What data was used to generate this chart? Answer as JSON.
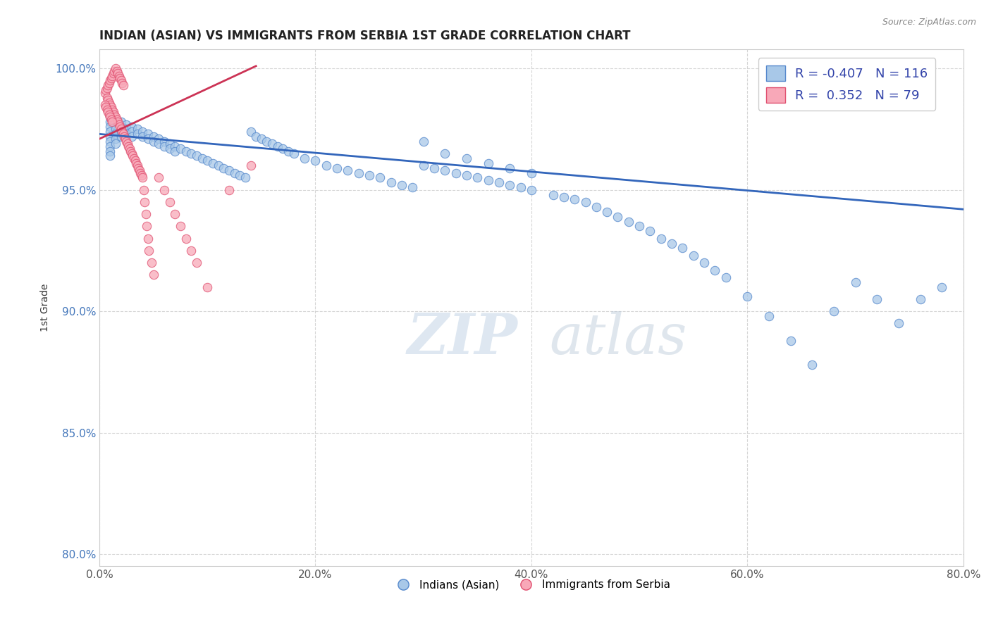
{
  "title": "INDIAN (ASIAN) VS IMMIGRANTS FROM SERBIA 1ST GRADE CORRELATION CHART",
  "source_text": "Source: ZipAtlas.com",
  "ylabel": "1st Grade",
  "xlim": [
    0.0,
    0.8
  ],
  "ylim": [
    0.795,
    1.008
  ],
  "xtick_labels": [
    "0.0%",
    "",
    "",
    "",
    "",
    "20.0%",
    "",
    "",
    "",
    "",
    "40.0%",
    "",
    "",
    "",
    "",
    "60.0%",
    "",
    "",
    "",
    "",
    "80.0%"
  ],
  "xtick_vals": [
    0.0,
    0.04,
    0.08,
    0.12,
    0.16,
    0.2,
    0.24,
    0.28,
    0.32,
    0.36,
    0.4,
    0.44,
    0.48,
    0.52,
    0.56,
    0.6,
    0.64,
    0.68,
    0.72,
    0.76,
    0.8
  ],
  "ytick_labels": [
    "80.0%",
    "85.0%",
    "90.0%",
    "95.0%",
    "100.0%"
  ],
  "ytick_vals": [
    0.8,
    0.85,
    0.9,
    0.95,
    1.0
  ],
  "blue_R": -0.407,
  "blue_N": 116,
  "pink_R": 0.352,
  "pink_N": 79,
  "blue_color": "#a8c8e8",
  "blue_edge": "#5588cc",
  "pink_color": "#f8a8b8",
  "pink_edge": "#e05070",
  "blue_line_color": "#3366bb",
  "pink_line_color": "#cc3355",
  "legend_blue_face": "#a8c8e8",
  "legend_pink_face": "#f8a8b8",
  "blue_trend_x": [
    0.0,
    0.8
  ],
  "blue_trend_y": [
    0.973,
    0.942
  ],
  "pink_trend_x": [
    0.0,
    0.145
  ],
  "pink_trend_y": [
    0.971,
    1.001
  ],
  "blue_scatter_x": [
    0.01,
    0.01,
    0.01,
    0.01,
    0.01,
    0.01,
    0.01,
    0.01,
    0.01,
    0.015,
    0.015,
    0.015,
    0.015,
    0.02,
    0.02,
    0.02,
    0.02,
    0.025,
    0.025,
    0.025,
    0.03,
    0.03,
    0.03,
    0.035,
    0.035,
    0.04,
    0.04,
    0.045,
    0.045,
    0.05,
    0.05,
    0.055,
    0.055,
    0.06,
    0.06,
    0.065,
    0.065,
    0.07,
    0.07,
    0.075,
    0.08,
    0.085,
    0.09,
    0.095,
    0.1,
    0.105,
    0.11,
    0.115,
    0.12,
    0.125,
    0.13,
    0.135,
    0.14,
    0.145,
    0.15,
    0.155,
    0.16,
    0.165,
    0.17,
    0.175,
    0.18,
    0.19,
    0.2,
    0.21,
    0.22,
    0.23,
    0.24,
    0.25,
    0.26,
    0.27,
    0.28,
    0.29,
    0.3,
    0.31,
    0.32,
    0.33,
    0.34,
    0.35,
    0.36,
    0.37,
    0.38,
    0.39,
    0.4,
    0.42,
    0.43,
    0.44,
    0.45,
    0.46,
    0.47,
    0.48,
    0.49,
    0.5,
    0.51,
    0.52,
    0.53,
    0.54,
    0.55,
    0.56,
    0.57,
    0.58,
    0.6,
    0.62,
    0.64,
    0.66,
    0.68,
    0.7,
    0.72,
    0.74,
    0.76,
    0.78,
    0.3,
    0.32,
    0.34,
    0.36,
    0.38,
    0.4
  ],
  "blue_scatter_y": [
    0.98,
    0.978,
    0.976,
    0.974,
    0.972,
    0.97,
    0.968,
    0.966,
    0.964,
    0.975,
    0.973,
    0.971,
    0.969,
    0.978,
    0.976,
    0.974,
    0.972,
    0.977,
    0.975,
    0.973,
    0.976,
    0.974,
    0.972,
    0.975,
    0.973,
    0.974,
    0.972,
    0.973,
    0.971,
    0.972,
    0.97,
    0.971,
    0.969,
    0.97,
    0.968,
    0.969,
    0.967,
    0.968,
    0.966,
    0.967,
    0.966,
    0.965,
    0.964,
    0.963,
    0.962,
    0.961,
    0.96,
    0.959,
    0.958,
    0.957,
    0.956,
    0.955,
    0.974,
    0.972,
    0.971,
    0.97,
    0.969,
    0.968,
    0.967,
    0.966,
    0.965,
    0.963,
    0.962,
    0.96,
    0.959,
    0.958,
    0.957,
    0.956,
    0.955,
    0.953,
    0.952,
    0.951,
    0.96,
    0.959,
    0.958,
    0.957,
    0.956,
    0.955,
    0.954,
    0.953,
    0.952,
    0.951,
    0.95,
    0.948,
    0.947,
    0.946,
    0.945,
    0.943,
    0.941,
    0.939,
    0.937,
    0.935,
    0.933,
    0.93,
    0.928,
    0.926,
    0.923,
    0.92,
    0.917,
    0.914,
    0.906,
    0.898,
    0.888,
    0.878,
    0.9,
    0.912,
    0.905,
    0.895,
    0.905,
    0.91,
    0.97,
    0.965,
    0.963,
    0.961,
    0.959,
    0.957
  ],
  "pink_scatter_x": [
    0.005,
    0.006,
    0.007,
    0.008,
    0.009,
    0.01,
    0.011,
    0.012,
    0.013,
    0.014,
    0.015,
    0.016,
    0.017,
    0.018,
    0.019,
    0.02,
    0.021,
    0.022,
    0.007,
    0.008,
    0.009,
    0.01,
    0.011,
    0.012,
    0.013,
    0.014,
    0.015,
    0.016,
    0.017,
    0.018,
    0.019,
    0.02,
    0.021,
    0.022,
    0.023,
    0.024,
    0.025,
    0.026,
    0.027,
    0.028,
    0.029,
    0.03,
    0.031,
    0.032,
    0.033,
    0.034,
    0.035,
    0.036,
    0.037,
    0.038,
    0.039,
    0.04,
    0.041,
    0.042,
    0.043,
    0.044,
    0.045,
    0.046,
    0.048,
    0.05,
    0.055,
    0.06,
    0.065,
    0.07,
    0.075,
    0.08,
    0.085,
    0.09,
    0.1,
    0.12,
    0.14,
    0.005,
    0.006,
    0.007,
    0.008,
    0.009,
    0.01,
    0.011,
    0.012
  ],
  "pink_scatter_y": [
    0.99,
    0.991,
    0.992,
    0.993,
    0.994,
    0.995,
    0.996,
    0.997,
    0.998,
    0.999,
    1.0,
    0.999,
    0.998,
    0.997,
    0.996,
    0.995,
    0.994,
    0.993,
    0.988,
    0.987,
    0.986,
    0.985,
    0.984,
    0.983,
    0.982,
    0.981,
    0.98,
    0.979,
    0.978,
    0.977,
    0.976,
    0.975,
    0.974,
    0.973,
    0.972,
    0.971,
    0.97,
    0.969,
    0.968,
    0.967,
    0.966,
    0.965,
    0.964,
    0.963,
    0.962,
    0.961,
    0.96,
    0.959,
    0.958,
    0.957,
    0.956,
    0.955,
    0.95,
    0.945,
    0.94,
    0.935,
    0.93,
    0.925,
    0.92,
    0.915,
    0.955,
    0.95,
    0.945,
    0.94,
    0.935,
    0.93,
    0.925,
    0.92,
    0.91,
    0.95,
    0.96,
    0.985,
    0.984,
    0.983,
    0.982,
    0.981,
    0.98,
    0.979,
    0.978
  ]
}
